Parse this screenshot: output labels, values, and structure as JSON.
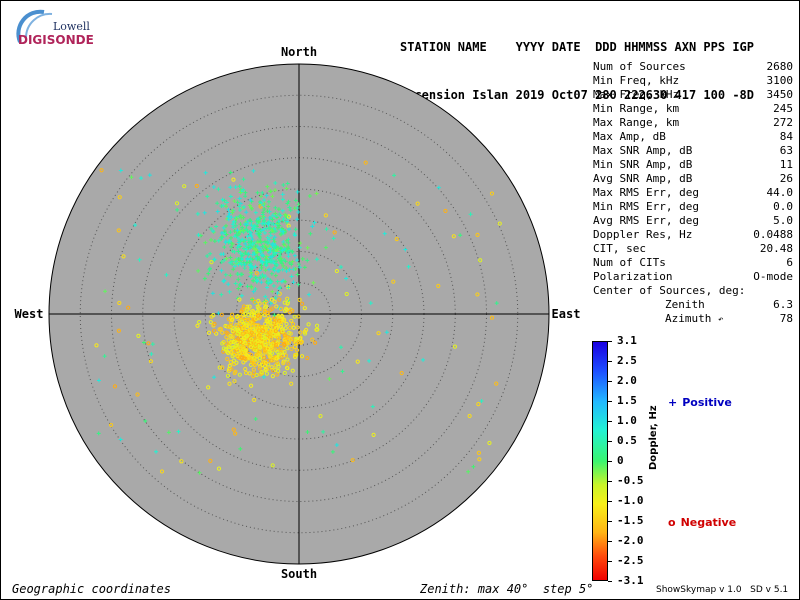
{
  "logo": {
    "top_text": "Lowell",
    "bottom_text": "DIGISONDE",
    "colors": {
      "arc": "#4a8fcf",
      "top": "#1d2f5f",
      "bottom": "#b0245a"
    }
  },
  "header": {
    "line1": "STATION NAME    YYYY DATE  DDD HHMMSS AXN PPS IGP",
    "line2": "Ascension Islan 2019 Oct07 280 222630 417 100 -8D"
  },
  "compass": {
    "north": "North",
    "south": "South",
    "east": "East",
    "west": "West"
  },
  "stats": [
    {
      "label": "Num of Sources",
      "value": "2680"
    },
    {
      "label": "Min Freq, kHz",
      "value": "3100"
    },
    {
      "label": "Max Freq, kHz",
      "value": "3450"
    },
    {
      "label": "Min Range, km",
      "value": "245"
    },
    {
      "label": "Max Range, km",
      "value": "272"
    },
    {
      "label": "Max Amp, dB",
      "value": "84"
    },
    {
      "label": "Max SNR Amp, dB",
      "value": "63"
    },
    {
      "label": "Min SNR Amp, dB",
      "value": "11"
    },
    {
      "label": "Avg SNR Amp, dB",
      "value": "26"
    },
    {
      "label": "Max RMS Err, deg",
      "value": "44.0"
    },
    {
      "label": "Min RMS Err, deg",
      "value": "0.0"
    },
    {
      "label": "Avg RMS Err, deg",
      "value": "5.0"
    },
    {
      "label": "Doppler Res, Hz",
      "value": "0.0488"
    },
    {
      "label": "CIT, sec",
      "value": "20.48"
    },
    {
      "label": "Num of CITs",
      "value": "6"
    },
    {
      "label": "Polarization",
      "value": "O-mode"
    },
    {
      "label": "Center of Sources, deg:",
      "value": ""
    }
  ],
  "center": {
    "zenith_label": "Zenith",
    "zenith_value": "6.3",
    "azimuth_label": "Azimuth",
    "azimuth_symbol": "↶",
    "azimuth_value": "78"
  },
  "colorbar": {
    "ticks": [
      "3.1",
      "2.5",
      "2.0",
      "1.5",
      "1.0",
      "0.5",
      "0",
      "-0.5",
      "-1.0",
      "-1.5",
      "-2.0",
      "-2.5",
      "-3.1"
    ],
    "label": "Doppler, Hz"
  },
  "legend": {
    "positive_symbol": "+",
    "positive_label": "Positive",
    "negative_symbol": "o",
    "negative_label": "Negative",
    "positive_color": "#0000c0",
    "negative_color": "#d00000"
  },
  "footer": {
    "left": "Geographic coordinates",
    "middle": "Zenith: max 40°  step 5°",
    "right": "ShowSkymap v 1.0   SD v 5.1"
  },
  "plot": {
    "max_zenith_deg": 40,
    "zenith_step_deg": 5,
    "disk_color": "#a9a9a9",
    "ring_color": "#555555"
  }
}
